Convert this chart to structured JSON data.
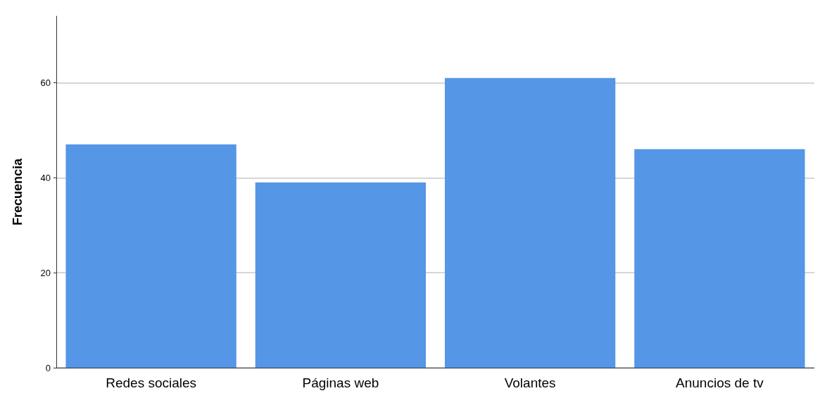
{
  "chart_data": {
    "type": "bar",
    "ylabel": "Frecuencia",
    "categories": [
      "Redes sociales",
      "Páginas web",
      "Volantes",
      "Anuncios de tv"
    ],
    "values": [
      47,
      39,
      61,
      46
    ],
    "color": "#5596e6",
    "ylim": [
      0,
      74
    ],
    "yticks": [
      0,
      20,
      40,
      60
    ],
    "grid": "y"
  }
}
